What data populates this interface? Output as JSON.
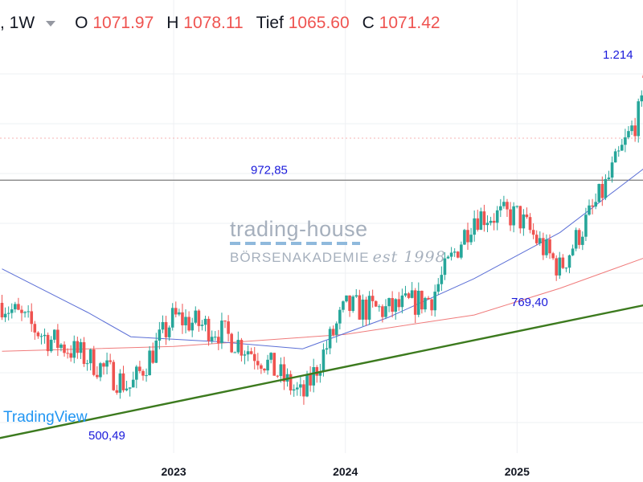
{
  "header": {
    "interval": ", 1W",
    "open_label": "O",
    "open_value": "1071.97",
    "high_label": "H",
    "high_value": "1078.11",
    "low_label": "Tief",
    "low_value": "1065.60",
    "close_label": "C",
    "close_value": "1071.42"
  },
  "watermark": {
    "brand": "trading-house",
    "sub": "BÖRSENAKADEMIE",
    "est": "est 1998"
  },
  "tv_logo": "TradingView",
  "colors": {
    "up": "#26a69a",
    "down": "#ef5350",
    "ma_fast": "#5b6fd6",
    "ma_slow": "#f07b7b",
    "trendline": "#3c7a1e",
    "level": "#888888",
    "annotation": "#1a1adb"
  },
  "chart_data": {
    "type": "candlestick",
    "interval": "1W",
    "x_ticks": [
      "2023",
      "2024",
      "2025"
    ],
    "y_range": [
      430,
      1250
    ],
    "horizontal_levels": [
      {
        "label": "972,85",
        "value": 972.85
      }
    ],
    "annotations": [
      {
        "label": "500,49",
        "value": 500.49,
        "x": "2022-10"
      },
      {
        "label": "769,40",
        "value": 769.4,
        "x": "2025-04"
      },
      {
        "label": "1.214",
        "value": 1214,
        "x": "2025-10"
      }
    ],
    "trendline": {
      "points": [
        {
          "x": "2021-12",
          "v": 436
        },
        {
          "x": "2025-12",
          "v": 728
        }
      ]
    },
    "series": [
      {
        "kind": "price",
        "x": [
          "2022-01",
          "2022-04",
          "2022-07",
          "2022-10",
          "2023-01",
          "2023-04",
          "2023-07",
          "2023-10",
          "2024-01",
          "2024-04",
          "2024-07",
          "2024-10",
          "2025-01",
          "2025-04",
          "2025-07",
          "2025-10",
          "2025-12"
        ],
        "values": [
          720,
          650,
          605,
          545,
          690,
          665,
          610,
          525,
          710,
          705,
          730,
          900,
          900,
          790,
          950,
          1140,
          1071
        ]
      },
      {
        "kind": "ma_fast",
        "x": [
          "2022-01",
          "2022-07",
          "2022-10",
          "2023-04",
          "2023-10",
          "2024-04",
          "2024-10",
          "2025-04",
          "2025-10",
          "2025-12"
        ],
        "values": [
          790,
          700,
          650,
          640,
          625,
          690,
          770,
          865,
          1000,
          1030
        ]
      },
      {
        "kind": "ma_slow",
        "x": [
          "2022-01",
          "2023-01",
          "2024-01",
          "2024-10",
          "2025-04",
          "2025-12"
        ],
        "values": [
          620,
          630,
          655,
          695,
          750,
          835
        ]
      }
    ]
  }
}
